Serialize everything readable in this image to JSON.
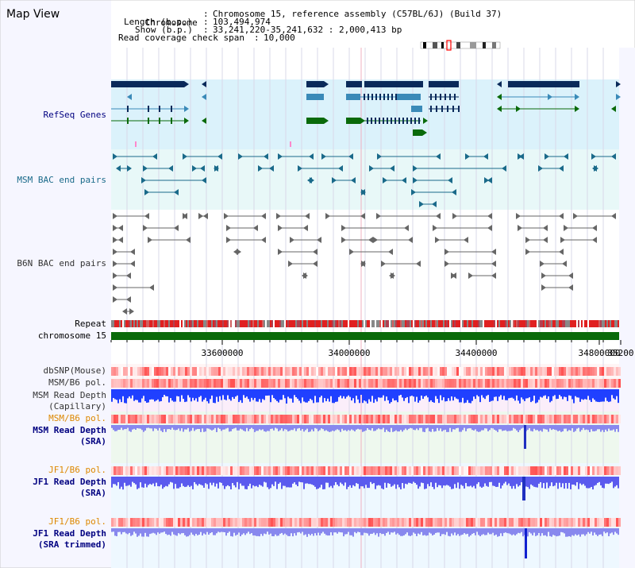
{
  "page": {
    "title": "Map View"
  },
  "header": {
    "chromosome_label": "Chromosome",
    "chromosome_value": "Chromosome 15, reference assembly (C57BL/6J) (Build 37)",
    "length_label": "Length (b.p.)",
    "length_value": "103,494,974",
    "show_label": "Show (b.p.)",
    "show_value": "33,241,220-35,241,632 : 2,000,413 bp",
    "coverage_label": "Read coverage check span",
    "coverage_value": "10,000"
  },
  "tracks": {
    "refseq": "RefSeq Genes",
    "msm_bac": "MSM BAC end pairs",
    "b6n_bac": "B6N BAC end pairs",
    "repeat": "Repeat",
    "chromosome": "chromosome 15",
    "dbsnp": "dbSNP(Mouse)",
    "msm_b6_pol_1": "MSM/B6 pol.",
    "msm_read_depth_cap_1": "MSM Read Depth",
    "msm_read_depth_cap_2": "(Capillary)",
    "msm_b6_pol_2": "MSM/B6 pol.",
    "msm_read_depth_sra_1": "MSM Read Depth",
    "msm_read_depth_sra_2": "(SRA)",
    "jf1_b6_pol_1": "JF1/B6 pol.",
    "jf1_read_depth_sra_1": "JF1 Read Depth",
    "jf1_read_depth_sra_2": "(SRA)",
    "jf1_b6_pol_2": "JF1/B6 pol.",
    "jf1_read_depth_trim_1": "JF1 Read Depth",
    "jf1_read_depth_trim_2": "(SRA trimmed)"
  },
  "axis": {
    "ticks": [
      "33600000",
      "34000000",
      "34400000",
      "34800000",
      "35200"
    ]
  },
  "colors": {
    "refseq_dark": "#0a2a5a",
    "refseq_mid": "#3a8ab8",
    "refseq_green": "#0a6a0a",
    "msm_bac": "#1a6a8a",
    "b6n_bac": "#666666",
    "chromosome_bar": "#0a6a0a",
    "label_navy": "#000080",
    "label_orange": "#dd8800",
    "label_teal": "#1a6a8a",
    "label_gray": "#333333"
  }
}
